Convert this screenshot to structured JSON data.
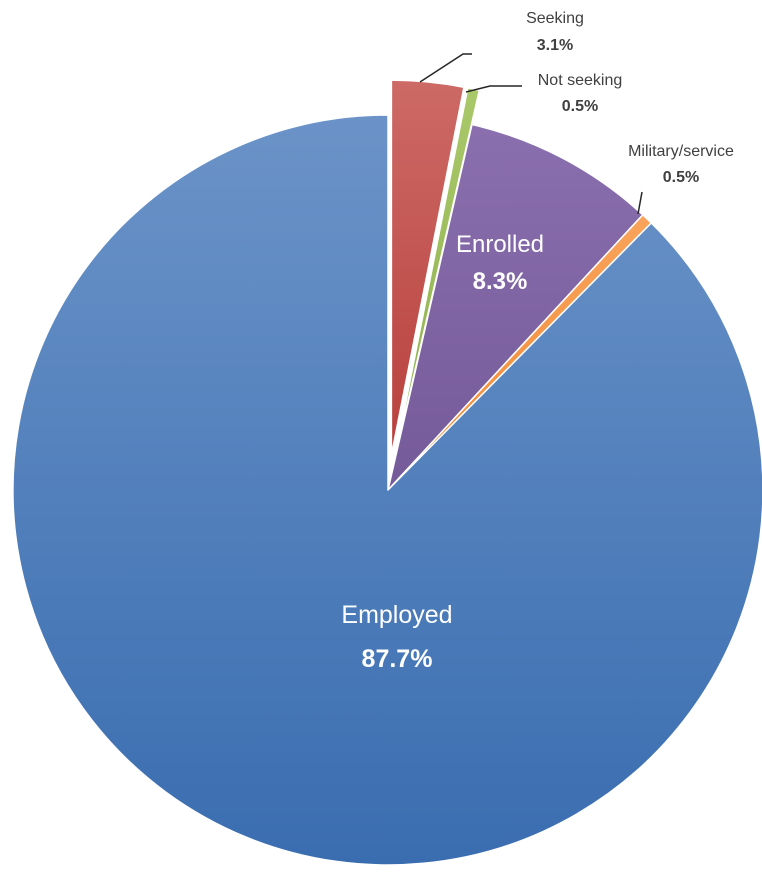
{
  "chart_data": {
    "type": "pie",
    "title": "",
    "slices": [
      {
        "label": "Employed",
        "value": 87.7,
        "value_label": "87.7%",
        "color": "#4a7ebf",
        "exploded": false,
        "label_position": "inside"
      },
      {
        "label": "Seeking",
        "value": 3.1,
        "value_label": "3.1%",
        "color": "#c0504d",
        "exploded": true,
        "label_position": "outside"
      },
      {
        "label": "Not seeking",
        "value": 0.5,
        "value_label": "0.5%",
        "color": "#9bbb59",
        "exploded": true,
        "label_position": "outside"
      },
      {
        "label": "Enrolled",
        "value": 8.3,
        "value_label": "8.3%",
        "color": "#8064a2",
        "exploded": false,
        "label_position": "inside"
      },
      {
        "label": "Military/service",
        "value": 0.5,
        "value_label": "0.5%",
        "color": "#f79646",
        "exploded": false,
        "label_position": "outside"
      }
    ]
  }
}
